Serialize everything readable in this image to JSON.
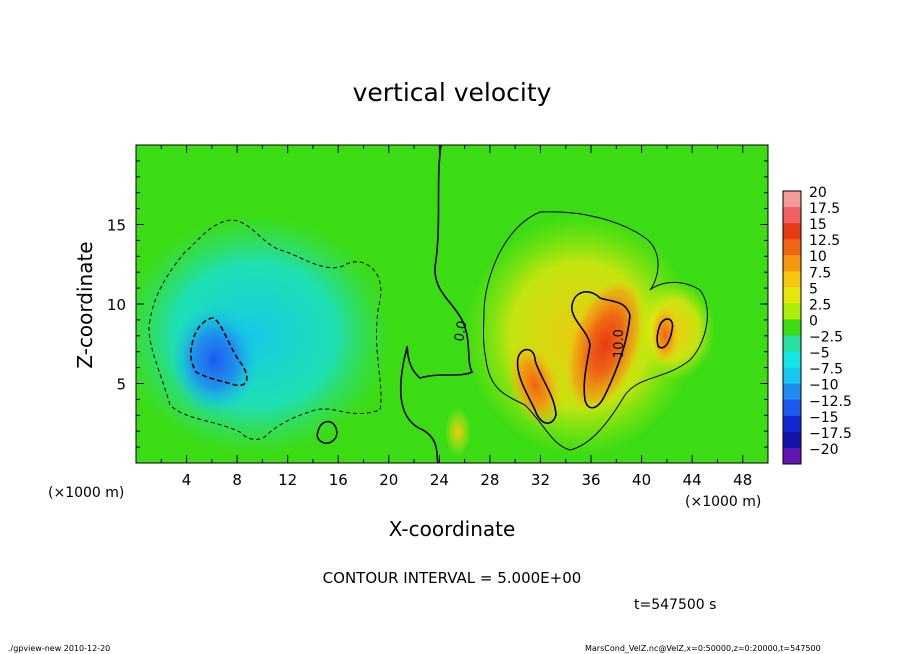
{
  "chart_data": {
    "type": "heatmap",
    "title": "vertical velocity",
    "xlabel": "X-coordinate",
    "ylabel": "Z-coordinate",
    "x_unit_label": "(×1000 m)",
    "y_unit_label": "(×1000 m)",
    "xlim": [
      0,
      50
    ],
    "ylim": [
      0,
      20
    ],
    "x_ticks": [
      4,
      8,
      12,
      16,
      20,
      24,
      28,
      32,
      36,
      40,
      44,
      48
    ],
    "y_ticks": [
      5,
      10,
      15
    ],
    "colorbar_levels": [
      "20",
      "17.5",
      "15",
      "12.5",
      "10",
      "7.5",
      "5",
      "2.5",
      "0",
      "−2.5",
      "−5",
      "−7.5",
      "−10",
      "−12.5",
      "−15",
      "−17.5",
      "−20"
    ],
    "colorbar_colors": [
      "#f59a9a",
      "#f06060",
      "#e83a14",
      "#f06414",
      "#f5960f",
      "#f5c80f",
      "#e6e60f",
      "#aaee0a",
      "#3cdc14",
      "#28e0a0",
      "#14e6e6",
      "#14c8f0",
      "#1e8cf0",
      "#1e5af0",
      "#1428d2",
      "#1414aa",
      "#6414b4"
    ],
    "contour_interval_text": "CONTOUR INTERVAL = 5.000E+00",
    "contour_labels": [
      "0.0",
      "10.0"
    ],
    "time_text": "t=547500 s",
    "footer_left": "./gpview-new   2010-12-20",
    "footer_right": "MarsCond_VelZ.nc@VelZ,x=0:50000,z=0:20000,t=547500",
    "features": [
      {
        "kind": "downdraft",
        "x": 6.5,
        "z": 7.2,
        "value": -12
      },
      {
        "kind": "updraft",
        "x": 37,
        "z": 8,
        "value": 13
      },
      {
        "kind": "updraft",
        "x": 31.5,
        "z": 5.5,
        "value": 11
      },
      {
        "kind": "updraft",
        "x": 42,
        "z": 8.2,
        "value": 9
      },
      {
        "kind": "updraft",
        "x": 25.5,
        "z": 2.2,
        "value": 7
      }
    ]
  }
}
